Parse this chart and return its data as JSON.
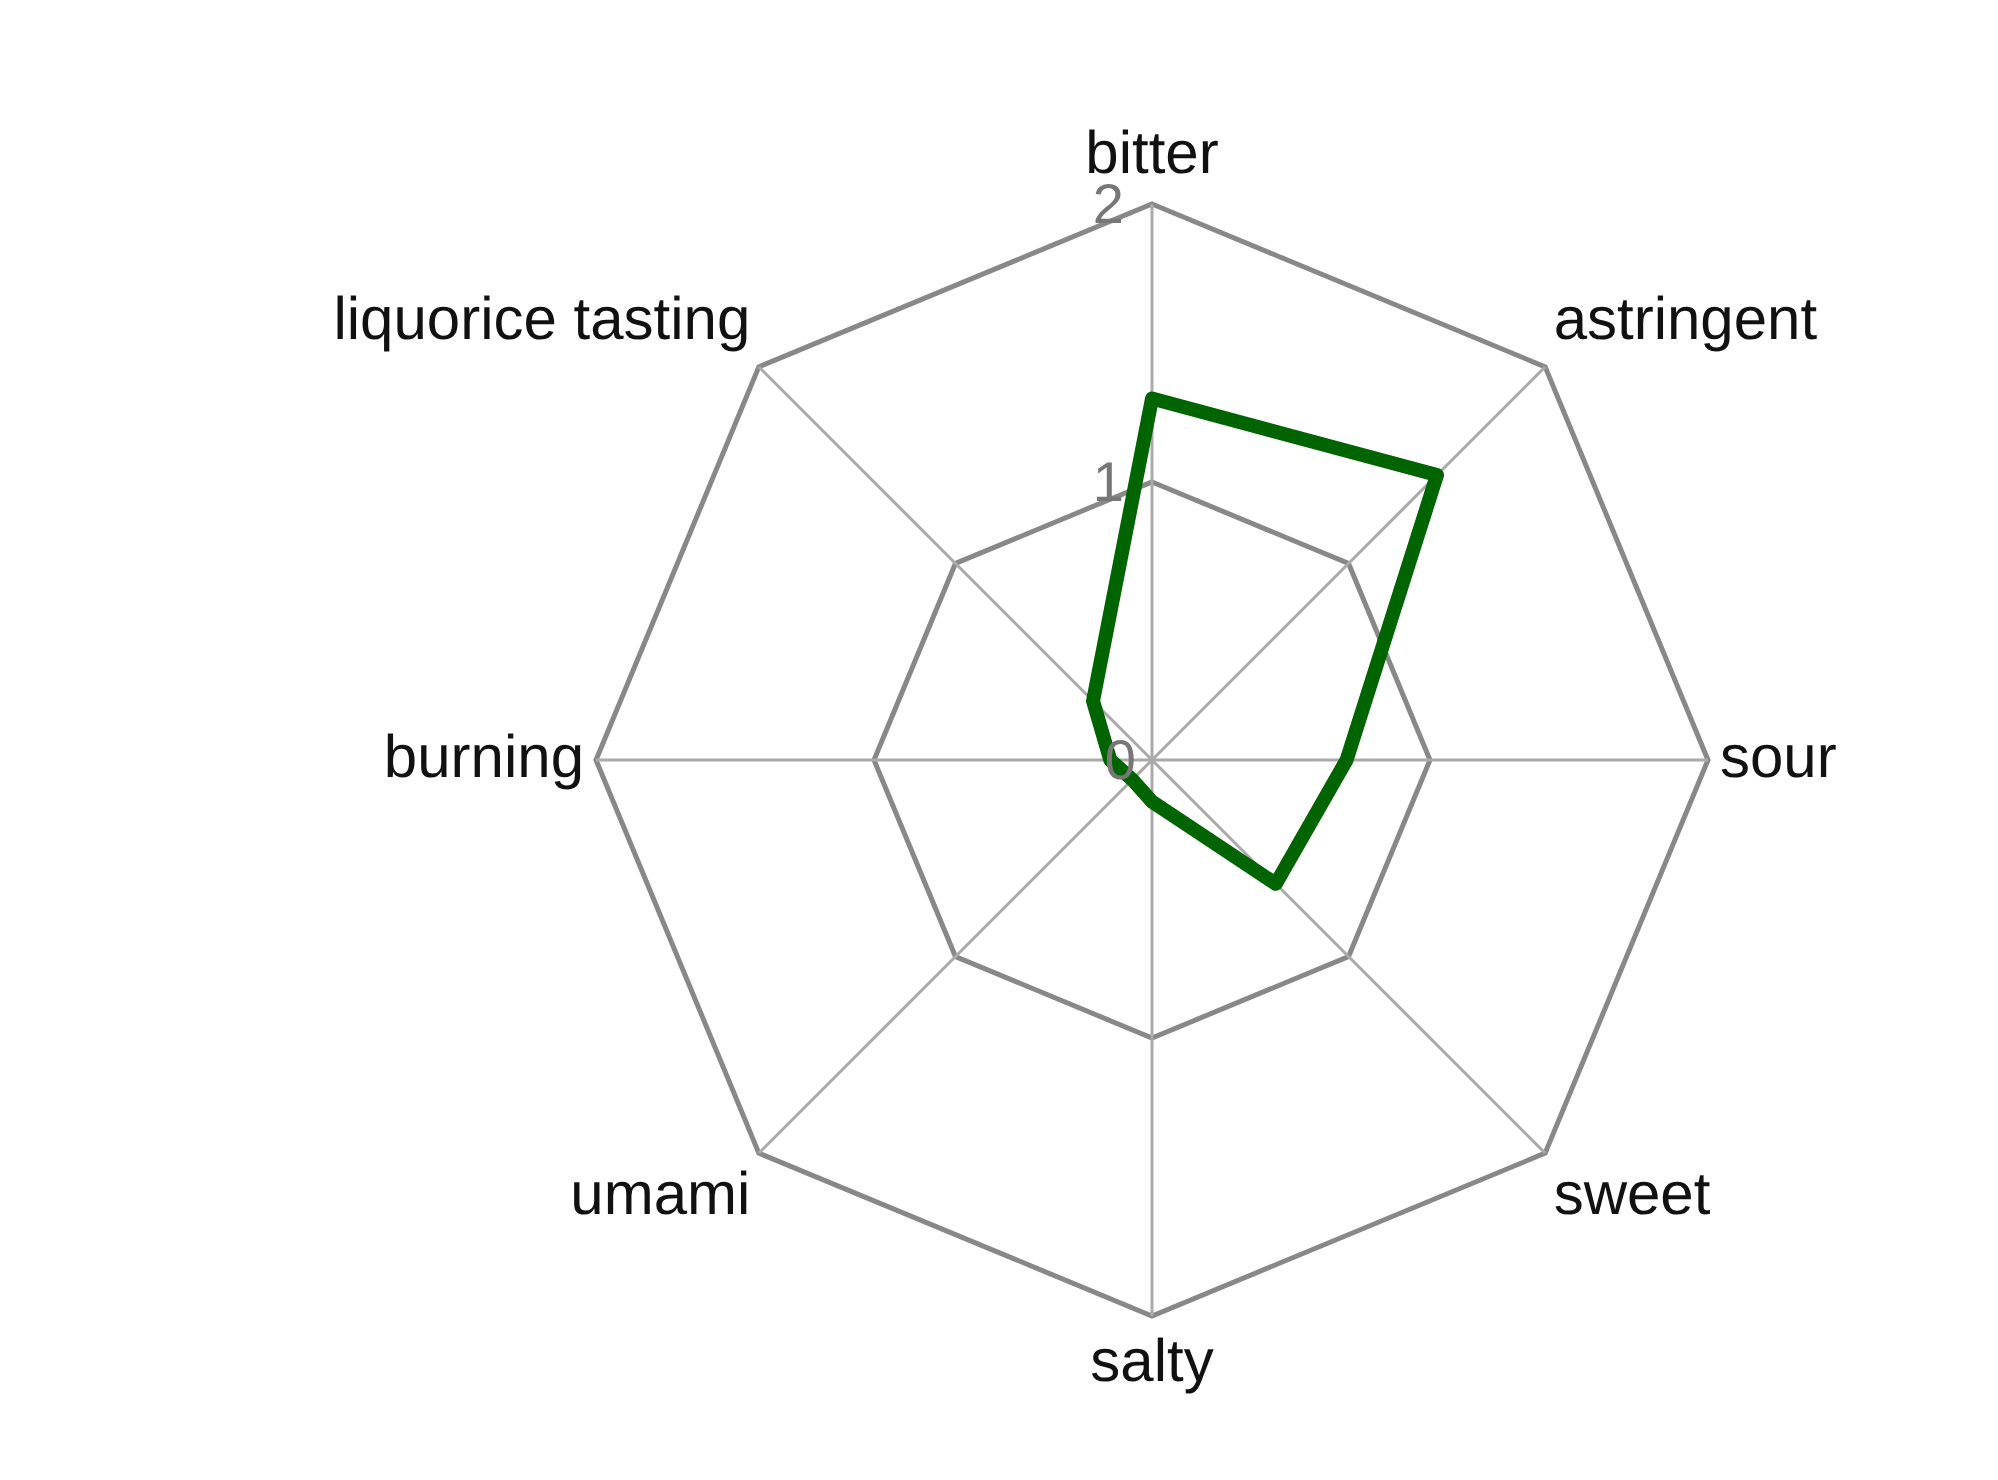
{
  "chart_data": {
    "type": "radar",
    "categories": [
      "bitter",
      "astringent",
      "sour",
      "sweet",
      "salty",
      "umami",
      "burning",
      "liquorice tasting"
    ],
    "series": [
      {
        "color": "#006400",
        "values": [
          1.3,
          1.45,
          0.7,
          0.63,
          0.15,
          0.1,
          0.15,
          0.3
        ]
      }
    ],
    "ylim": [
      0,
      2
    ],
    "yticks": [
      0,
      1,
      2
    ],
    "legend": false,
    "marker": "none",
    "grid": true
  }
}
